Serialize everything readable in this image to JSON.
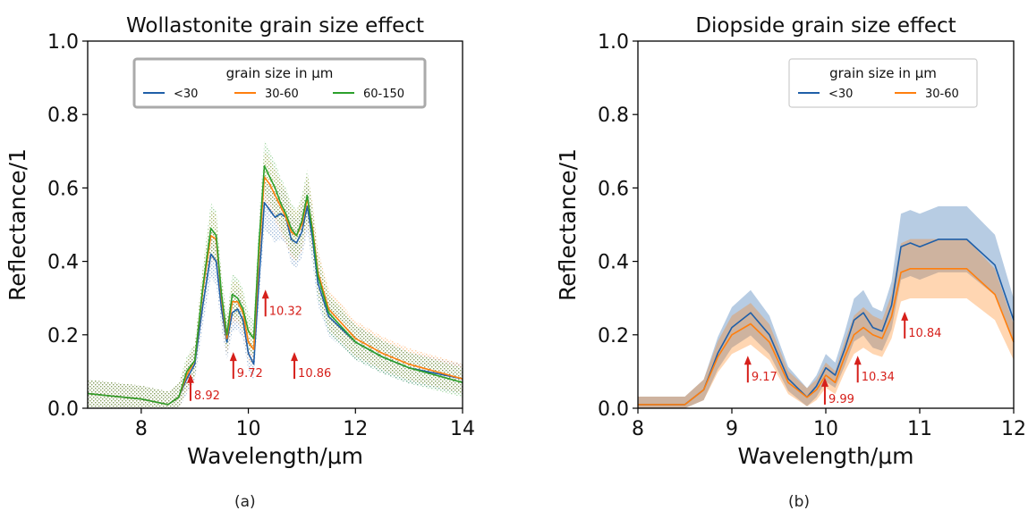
{
  "colors": {
    "blue": "#1f5fa8",
    "orange": "#ff7f0e",
    "green": "#2ca02c",
    "annotation": "#d6201b"
  },
  "chart_data": [
    {
      "type": "line",
      "caption": "(a)",
      "title": "Wollastonite grain size effect",
      "xlabel": "Wavelength/μm",
      "ylabel": "Reflectance/1",
      "xlim": [
        7,
        14
      ],
      "ylim": [
        0,
        1.0
      ],
      "xticks": [
        "8",
        "10",
        "12",
        "14"
      ],
      "yticks": [
        "0.0",
        "0.2",
        "0.4",
        "0.6",
        "0.8",
        "1.0"
      ],
      "legend": {
        "title": "grain size in μm",
        "placement": "top-center"
      },
      "series": [
        {
          "name": "<30",
          "color": "#1f5fa8",
          "x": [
            7.0,
            8.0,
            8.5,
            8.7,
            8.85,
            9.0,
            9.15,
            9.3,
            9.4,
            9.5,
            9.6,
            9.7,
            9.8,
            9.9,
            10.0,
            10.1,
            10.2,
            10.3,
            10.4,
            10.5,
            10.6,
            10.7,
            10.8,
            10.9,
            11.0,
            11.1,
            11.2,
            11.3,
            11.5,
            12.0,
            12.5,
            13.0,
            14.0
          ],
          "y": [
            0.04,
            0.025,
            0.01,
            0.03,
            0.08,
            0.12,
            0.28,
            0.42,
            0.4,
            0.27,
            0.18,
            0.26,
            0.27,
            0.24,
            0.15,
            0.12,
            0.35,
            0.56,
            0.54,
            0.52,
            0.53,
            0.52,
            0.46,
            0.45,
            0.48,
            0.55,
            0.46,
            0.34,
            0.25,
            0.18,
            0.14,
            0.11,
            0.08
          ]
        },
        {
          "name": "30-60",
          "color": "#ff7f0e",
          "x": [
            7.0,
            8.0,
            8.5,
            8.7,
            8.85,
            9.0,
            9.15,
            9.3,
            9.4,
            9.5,
            9.6,
            9.7,
            9.8,
            9.9,
            10.0,
            10.1,
            10.2,
            10.3,
            10.4,
            10.5,
            10.6,
            10.7,
            10.8,
            10.9,
            11.0,
            11.1,
            11.2,
            11.3,
            11.5,
            12.0,
            12.5,
            13.0,
            14.0
          ],
          "y": [
            0.04,
            0.025,
            0.01,
            0.03,
            0.09,
            0.13,
            0.32,
            0.47,
            0.46,
            0.3,
            0.19,
            0.29,
            0.29,
            0.26,
            0.18,
            0.16,
            0.42,
            0.63,
            0.61,
            0.58,
            0.55,
            0.52,
            0.48,
            0.47,
            0.5,
            0.57,
            0.49,
            0.37,
            0.27,
            0.19,
            0.15,
            0.12,
            0.08
          ]
        },
        {
          "name": "60-150",
          "color": "#2ca02c",
          "x": [
            7.0,
            8.0,
            8.5,
            8.7,
            8.85,
            9.0,
            9.15,
            9.3,
            9.4,
            9.5,
            9.6,
            9.7,
            9.8,
            9.9,
            10.0,
            10.1,
            10.2,
            10.3,
            10.4,
            10.5,
            10.6,
            10.7,
            10.8,
            10.9,
            11.0,
            11.1,
            11.2,
            11.3,
            11.5,
            12.0,
            12.5,
            13.0,
            14.0
          ],
          "y": [
            0.04,
            0.025,
            0.01,
            0.03,
            0.1,
            0.13,
            0.33,
            0.49,
            0.47,
            0.31,
            0.2,
            0.31,
            0.3,
            0.27,
            0.21,
            0.19,
            0.45,
            0.66,
            0.63,
            0.6,
            0.56,
            0.53,
            0.49,
            0.47,
            0.51,
            0.58,
            0.48,
            0.36,
            0.26,
            0.18,
            0.14,
            0.11,
            0.07
          ]
        }
      ],
      "annotations": [
        {
          "text": "8.92",
          "x": 8.92,
          "y": 0.02
        },
        {
          "text": "9.72",
          "x": 9.72,
          "y": 0.08
        },
        {
          "text": "10.32",
          "x": 10.32,
          "y": 0.25
        },
        {
          "text": "10.86",
          "x": 10.86,
          "y": 0.08
        }
      ]
    },
    {
      "type": "line",
      "caption": "(b)",
      "title": "Diopside grain size effect",
      "xlabel": "Wavelength/μm",
      "ylabel": "Reflectance/1",
      "xlim": [
        8,
        12
      ],
      "ylim": [
        0,
        1.0
      ],
      "xticks": [
        "8",
        "9",
        "10",
        "11",
        "12"
      ],
      "yticks": [
        "0.0",
        "0.2",
        "0.4",
        "0.6",
        "0.8",
        "1.0"
      ],
      "legend": {
        "title": "grain size in μm",
        "placement": "top-right"
      },
      "series": [
        {
          "name": "<30",
          "color": "#1f5fa8",
          "x": [
            8.0,
            8.5,
            8.7,
            8.85,
            9.0,
            9.2,
            9.4,
            9.6,
            9.8,
            9.9,
            10.0,
            10.05,
            10.1,
            10.2,
            10.3,
            10.4,
            10.5,
            10.6,
            10.7,
            10.8,
            10.9,
            11.0,
            11.2,
            11.5,
            11.8,
            12.0
          ],
          "y": [
            0.01,
            0.01,
            0.05,
            0.15,
            0.22,
            0.26,
            0.2,
            0.08,
            0.03,
            0.06,
            0.11,
            0.1,
            0.09,
            0.16,
            0.24,
            0.26,
            0.22,
            0.21,
            0.28,
            0.44,
            0.45,
            0.44,
            0.46,
            0.46,
            0.39,
            0.24
          ]
        },
        {
          "name": "30-60",
          "color": "#ff7f0e",
          "x": [
            8.0,
            8.5,
            8.7,
            8.85,
            9.0,
            9.2,
            9.4,
            9.6,
            9.8,
            9.9,
            10.0,
            10.05,
            10.1,
            10.2,
            10.3,
            10.4,
            10.5,
            10.6,
            10.7,
            10.8,
            10.9,
            11.0,
            11.2,
            11.5,
            11.8,
            12.0
          ],
          "y": [
            0.01,
            0.01,
            0.05,
            0.14,
            0.2,
            0.23,
            0.18,
            0.07,
            0.03,
            0.05,
            0.09,
            0.08,
            0.07,
            0.14,
            0.2,
            0.22,
            0.2,
            0.19,
            0.25,
            0.37,
            0.38,
            0.38,
            0.38,
            0.38,
            0.31,
            0.18
          ]
        }
      ],
      "annotations": [
        {
          "text": "9.17",
          "x": 9.17,
          "y": 0.07
        },
        {
          "text": "9.99",
          "x": 9.99,
          "y": 0.01
        },
        {
          "text": "10.34",
          "x": 10.34,
          "y": 0.07
        },
        {
          "text": "10.84",
          "x": 10.84,
          "y": 0.19
        }
      ]
    }
  ]
}
